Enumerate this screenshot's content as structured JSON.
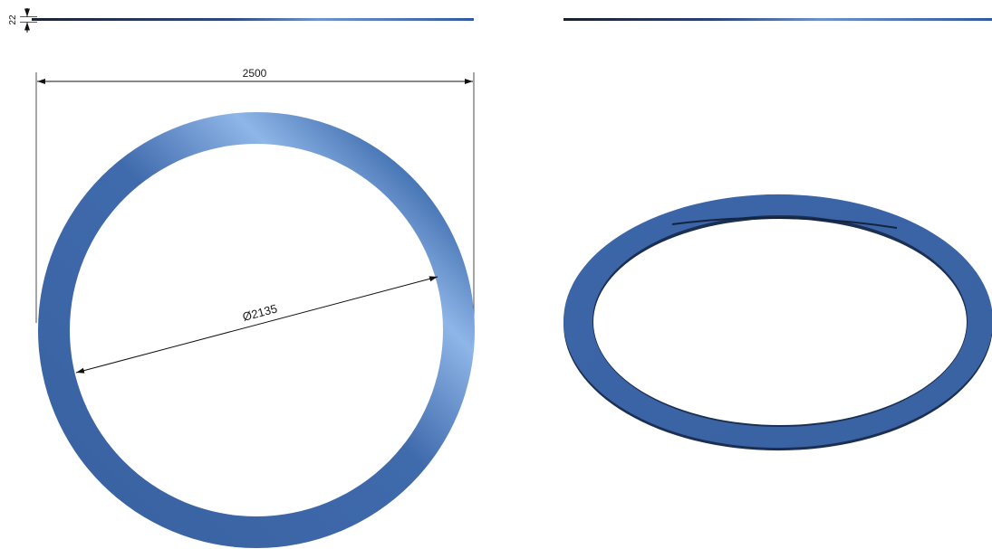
{
  "drawing": {
    "dimensions": {
      "thickness": "22",
      "outer_diameter": "2500",
      "inner_diameter": "Ø2135"
    },
    "colors": {
      "ring_dark": "#3a63a3",
      "ring_mid": "#3f6aac",
      "ring_light": "#8fb6e8",
      "ring_shadow": "#1b2f52",
      "dimension_line": "#111111"
    },
    "views": [
      "top-view",
      "edge-view",
      "isometric-view"
    ]
  }
}
